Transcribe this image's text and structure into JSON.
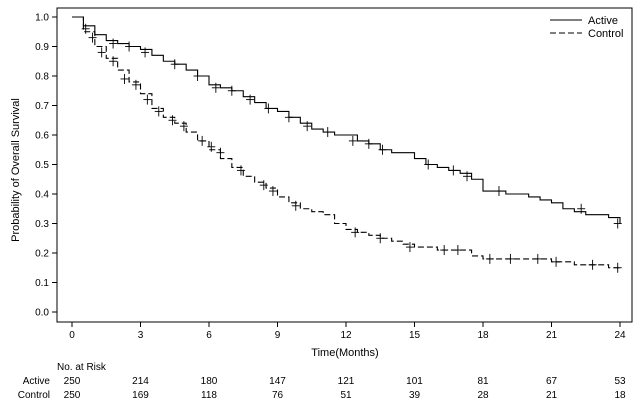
{
  "chart_data": {
    "type": "line",
    "subtype": "kaplan-meier",
    "xlabel": "Time(Months)",
    "ylabel": "Probability of Overall Survival",
    "xlim": [
      0,
      24
    ],
    "ylim": [
      0,
      1.0
    ],
    "xticks": [
      0,
      3,
      6,
      9,
      12,
      15,
      18,
      21,
      24
    ],
    "yticks": [
      0.0,
      0.1,
      0.2,
      0.3,
      0.4,
      0.5,
      0.6,
      0.7,
      0.8,
      0.9,
      1.0
    ],
    "ytick_labels": [
      "0.0",
      "0.1",
      "0.2",
      "0.3",
      "0.4",
      "0.5",
      "0.6",
      "0.7",
      "0.8",
      "0.9",
      "1.0"
    ],
    "grid": false,
    "legend_position": "top-right",
    "series": [
      {
        "name": "Active",
        "line_style": "solid",
        "x": [
          0,
          0.5,
          1,
          1.5,
          2,
          2.5,
          3,
          3.5,
          4,
          4.5,
          5,
          5.5,
          6,
          6.5,
          7,
          7.5,
          8,
          8.5,
          9,
          9.5,
          10,
          10.5,
          11,
          11.5,
          12,
          12.5,
          13,
          13.5,
          14,
          14.5,
          15,
          15.5,
          16,
          16.5,
          17,
          17.5,
          18,
          18.5,
          19,
          19.5,
          20,
          20.5,
          21,
          21.5,
          22,
          22.5,
          23,
          23.5,
          24
        ],
        "y": [
          1.0,
          0.97,
          0.94,
          0.92,
          0.91,
          0.9,
          0.89,
          0.87,
          0.85,
          0.84,
          0.82,
          0.8,
          0.77,
          0.76,
          0.75,
          0.73,
          0.71,
          0.69,
          0.68,
          0.66,
          0.64,
          0.62,
          0.61,
          0.6,
          0.6,
          0.58,
          0.57,
          0.55,
          0.54,
          0.54,
          0.52,
          0.5,
          0.49,
          0.48,
          0.47,
          0.45,
          0.41,
          0.41,
          0.4,
          0.4,
          0.39,
          0.38,
          0.37,
          0.35,
          0.34,
          0.33,
          0.33,
          0.32,
          0.3
        ],
        "censor_x": [
          1.8,
          2.5,
          3.2,
          4.5,
          5.5,
          6.3,
          7,
          7.8,
          8.6,
          9.5,
          10.3,
          11.2,
          12.3,
          13,
          13.6,
          15.6,
          16.7,
          17.3,
          18.7,
          22.3,
          23.9
        ],
        "censor_y": [
          0.91,
          0.9,
          0.88,
          0.84,
          0.8,
          0.76,
          0.75,
          0.72,
          0.69,
          0.66,
          0.63,
          0.61,
          0.58,
          0.57,
          0.55,
          0.5,
          0.48,
          0.46,
          0.41,
          0.35,
          0.3
        ]
      },
      {
        "name": "Control",
        "line_style": "dashed",
        "x": [
          0,
          0.5,
          1,
          1.5,
          2,
          2.5,
          3,
          3.5,
          4,
          4.5,
          5,
          5.5,
          6,
          6.5,
          7,
          7.5,
          8,
          8.5,
          9,
          9.5,
          10,
          10.5,
          11,
          11.5,
          12,
          12.5,
          13,
          13.5,
          14,
          14.5,
          15,
          15.5,
          16,
          16.5,
          17,
          17.5,
          18,
          18.5,
          19,
          19.5,
          20,
          20.5,
          21,
          21.5,
          22,
          22.5,
          23,
          23.5,
          24
        ],
        "y": [
          1.0,
          0.95,
          0.9,
          0.86,
          0.82,
          0.78,
          0.74,
          0.69,
          0.66,
          0.64,
          0.61,
          0.58,
          0.55,
          0.52,
          0.49,
          0.46,
          0.44,
          0.42,
          0.39,
          0.37,
          0.35,
          0.34,
          0.33,
          0.3,
          0.28,
          0.27,
          0.26,
          0.25,
          0.24,
          0.23,
          0.22,
          0.22,
          0.21,
          0.21,
          0.21,
          0.19,
          0.18,
          0.18,
          0.18,
          0.18,
          0.18,
          0.18,
          0.17,
          0.17,
          0.16,
          0.16,
          0.16,
          0.15,
          0.15
        ],
        "censor_x": [
          0.6,
          0.9,
          1.3,
          1.8,
          2.3,
          2.8,
          3.3,
          3.8,
          4.4,
          4.9,
          5.7,
          6.1,
          6.5,
          7.4,
          8.4,
          8.8,
          9.8,
          12.4,
          13.5,
          14.8,
          16.3,
          16.9,
          18.3,
          19.2,
          20.4,
          21.2,
          22.8,
          23.9
        ],
        "censor_y": [
          0.96,
          0.93,
          0.88,
          0.85,
          0.79,
          0.77,
          0.72,
          0.68,
          0.65,
          0.63,
          0.58,
          0.56,
          0.54,
          0.48,
          0.43,
          0.41,
          0.36,
          0.27,
          0.25,
          0.22,
          0.21,
          0.21,
          0.18,
          0.18,
          0.18,
          0.17,
          0.16,
          0.15
        ]
      }
    ],
    "risk_table": {
      "title": "No. at Risk",
      "times": [
        0,
        3,
        6,
        9,
        12,
        15,
        18,
        21,
        24
      ],
      "rows": [
        {
          "label": "Active",
          "values": [
            "250",
            "214",
            "180",
            "147",
            "121",
            "101",
            "81",
            "67",
            "53"
          ]
        },
        {
          "label": "Control",
          "values": [
            "250",
            "169",
            "118",
            "76",
            "51",
            "39",
            "28",
            "21",
            "18"
          ]
        }
      ]
    }
  }
}
